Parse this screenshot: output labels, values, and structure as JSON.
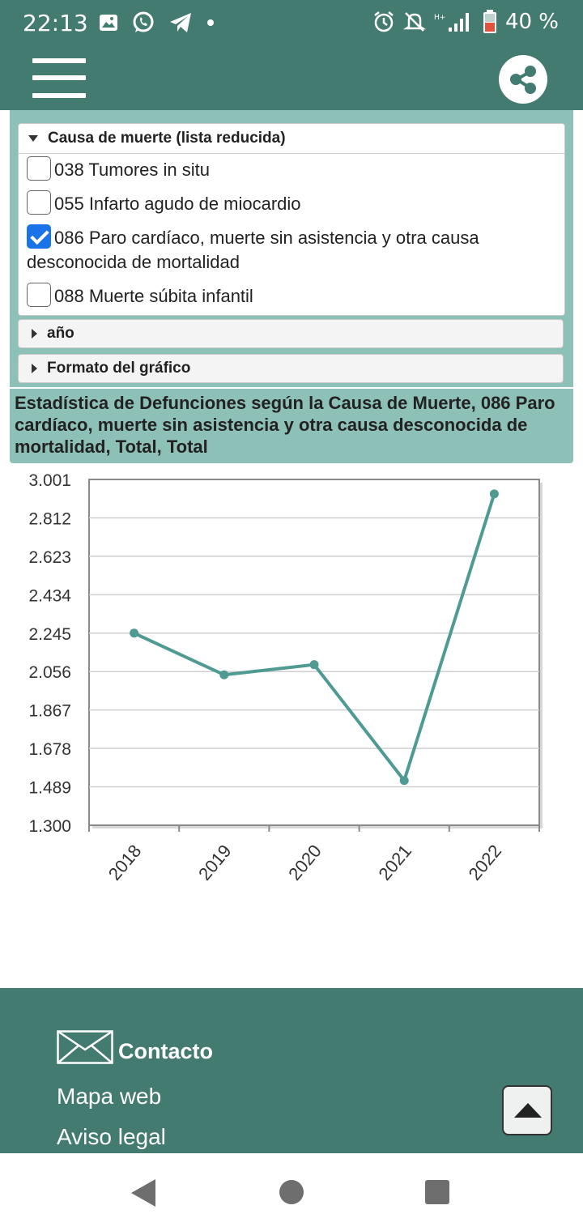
{
  "status_bar": {
    "time": "22:13",
    "battery": "40 %",
    "icons_left": [
      "image-icon",
      "whatsapp-icon",
      "telegram-icon",
      "dot-icon"
    ],
    "icons_right": [
      "alarm-icon",
      "mute-icon",
      "signal-icon",
      "battery-icon"
    ]
  },
  "app_bar": {
    "menu_icon": "hamburger-menu-icon",
    "share_icon": "share-icon"
  },
  "filters": {
    "cause": {
      "header": "Causa de muerte (lista reducida)",
      "options": [
        {
          "label": "038 Tumores in situ",
          "checked": false
        },
        {
          "label": "055 Infarto agudo de miocardio",
          "checked": false
        },
        {
          "label": "086 Paro cardíaco, muerte sin asistencia y otra causa",
          "label_cont": "desconocida de mortalidad",
          "checked": true
        },
        {
          "label": "088 Muerte súbita infantil",
          "checked": false
        }
      ]
    },
    "year": {
      "header": "año"
    },
    "format": {
      "header": "Formato del gráfico"
    }
  },
  "chart_title": {
    "line1": "Estadística de Defunciones según la Causa de Muerte, 086 Paro",
    "line2": "cardíaco, muerte sin asistencia y otra causa desconocida de",
    "line3": "mortalidad, Total, Total"
  },
  "chart_data": {
    "type": "line",
    "categories": [
      "2018",
      "2019",
      "2020",
      "2021",
      "2022"
    ],
    "series": [
      {
        "values": [
          2245,
          2040,
          2090,
          1520,
          2930
        ],
        "color": "#4f9a93"
      }
    ],
    "ylim": [
      1300,
      3001
    ],
    "yticks": [
      "3.001",
      "2.812",
      "2.623",
      "2.434",
      "2.245",
      "2.056",
      "1.867",
      "1.678",
      "1.489",
      "1.300"
    ],
    "grid": true
  },
  "footer": {
    "contact": "Contacto",
    "sitemap": "Mapa web",
    "legal": "Aviso legal",
    "mail_icon": "envelope-icon",
    "scroll_top_icon": "chevron-up-icon"
  },
  "nav_bar": {
    "back_icon": "back-icon",
    "home_icon": "home-icon",
    "recents_icon": "recents-icon"
  },
  "colors": {
    "primary": "#437b70",
    "panel": "#8dc0b7",
    "series": "#4f9a93",
    "checkbox": "#1a73e8"
  }
}
